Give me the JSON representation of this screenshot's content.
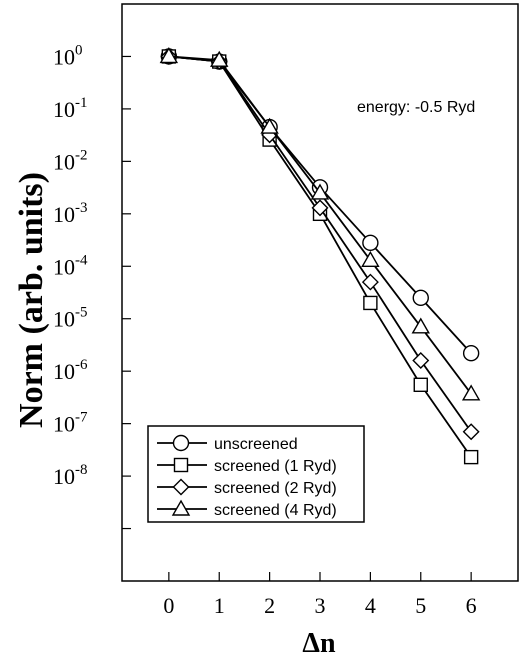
{
  "chart_data": {
    "type": "line",
    "annotation": "energy: -0.5 Ryd",
    "xlabel": "Δn",
    "ylabel": "Norm (arb. units)",
    "x": [
      0,
      1,
      2,
      3,
      4,
      5,
      6
    ],
    "xlim": [
      -0.93,
      6.93
    ],
    "ylim": [
      1e-10,
      10
    ],
    "yscale": "log",
    "x_ticks": [
      "0",
      "1",
      "2",
      "3",
      "4",
      "5",
      "6"
    ],
    "y_ticks": [
      {
        "base": "10",
        "exp": "0",
        "value": 1
      },
      {
        "base": "10",
        "exp": "-1",
        "value": 0.1
      },
      {
        "base": "10",
        "exp": "-2",
        "value": 0.01
      },
      {
        "base": "10",
        "exp": "-3",
        "value": 0.001
      },
      {
        "base": "10",
        "exp": "-4",
        "value": 0.0001
      },
      {
        "base": "10",
        "exp": "-5",
        "value": 1e-05
      },
      {
        "base": "10",
        "exp": "-6",
        "value": 1e-06
      },
      {
        "base": "10",
        "exp": "-7",
        "value": 1e-07
      },
      {
        "base": "10",
        "exp": "-8",
        "value": 1e-08
      }
    ],
    "legend_position": "lower-left",
    "series": [
      {
        "name": "unscreened",
        "marker": "circle",
        "values": [
          1.0,
          0.8,
          0.045,
          0.0032,
          0.00028,
          2.5e-05,
          2.2e-06
        ]
      },
      {
        "name": "screened (1 Ryd)",
        "marker": "square",
        "values": [
          1.0,
          0.8,
          0.026,
          0.001,
          2e-05,
          5.5e-07,
          2.3e-08
        ]
      },
      {
        "name": "screened (2 Ryd)",
        "marker": "diamond",
        "values": [
          1.0,
          0.8,
          0.032,
          0.0013,
          5e-05,
          1.6e-06,
          7e-08
        ]
      },
      {
        "name": "screened (4 Ryd)",
        "marker": "triangle",
        "values": [
          1.0,
          0.85,
          0.045,
          0.0025,
          0.00013,
          7e-06,
          3.7e-07
        ]
      }
    ]
  }
}
